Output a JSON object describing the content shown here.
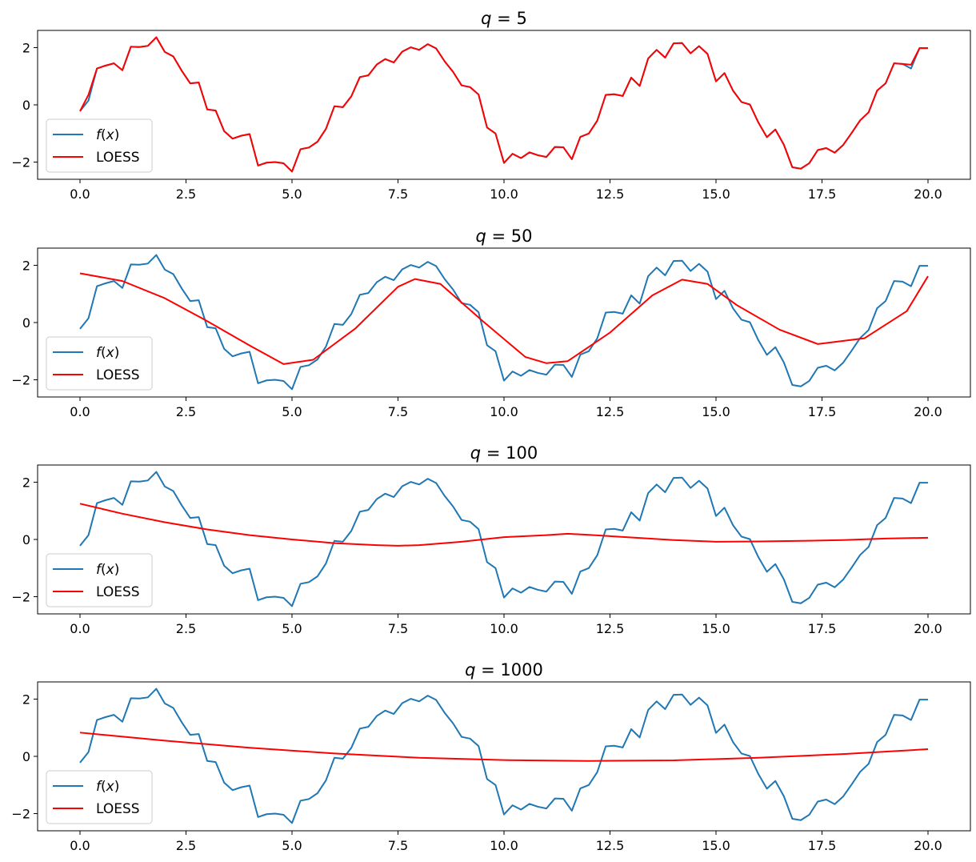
{
  "chart_data": [
    {
      "type": "line",
      "title_var": "q",
      "title_eq": " = ",
      "title_val": "5",
      "xlim": [
        -1.0,
        21.0
      ],
      "ylim": [
        -2.6,
        2.6
      ],
      "xticks": [
        "0.0",
        "2.5",
        "5.0",
        "7.5",
        "10.0",
        "12.5",
        "15.0",
        "17.5",
        "20.0"
      ],
      "yticks": [
        "−2",
        "0",
        "2"
      ],
      "grid": false,
      "legend_position": "lower-left",
      "series": [
        {
          "name_fn": "f",
          "name_paren_open": "(",
          "name_arg": "x",
          "name_paren_close": ")",
          "color": "#1f77b4",
          "ref": "fx"
        },
        {
          "name": "LOESS",
          "color": "#ff0000",
          "kind": "copy_of_fx"
        }
      ]
    },
    {
      "type": "line",
      "title_var": "q",
      "title_eq": " = ",
      "title_val": "50",
      "xlim": [
        -1.0,
        21.0
      ],
      "ylim": [
        -2.6,
        2.6
      ],
      "xticks": [
        "0.0",
        "2.5",
        "5.0",
        "7.5",
        "10.0",
        "12.5",
        "15.0",
        "17.5",
        "20.0"
      ],
      "yticks": [
        "−2",
        "0",
        "2"
      ],
      "grid": false,
      "legend_position": "lower-left",
      "series": [
        {
          "name_fn": "f",
          "name_paren_open": "(",
          "name_arg": "x",
          "name_paren_close": ")",
          "color": "#1f77b4",
          "ref": "fx"
        },
        {
          "name": "LOESS",
          "color": "#ff0000",
          "x": [
            0.0,
            1.0,
            2.0,
            3.0,
            4.0,
            4.8,
            5.5,
            6.5,
            7.5,
            7.9,
            8.5,
            9.5,
            10.5,
            11.0,
            11.5,
            12.5,
            13.5,
            14.2,
            14.8,
            15.5,
            16.5,
            17.4,
            18.5,
            19.5,
            20.0
          ],
          "y": [
            1.72,
            1.45,
            0.85,
            0.05,
            -0.8,
            -1.45,
            -1.3,
            -0.2,
            1.25,
            1.52,
            1.35,
            0.05,
            -1.2,
            -1.42,
            -1.35,
            -0.35,
            0.95,
            1.5,
            1.35,
            0.6,
            -0.25,
            -0.75,
            -0.55,
            0.4,
            1.62
          ]
        }
      ]
    },
    {
      "type": "line",
      "title_var": "q",
      "title_eq": " = ",
      "title_val": "100",
      "xlim": [
        -1.0,
        21.0
      ],
      "ylim": [
        -2.6,
        2.6
      ],
      "xticks": [
        "0.0",
        "2.5",
        "5.0",
        "7.5",
        "10.0",
        "12.5",
        "15.0",
        "17.5",
        "20.0"
      ],
      "yticks": [
        "−2",
        "0",
        "2"
      ],
      "grid": false,
      "legend_position": "lower-left",
      "series": [
        {
          "name_fn": "f",
          "name_paren_open": "(",
          "name_arg": "x",
          "name_paren_close": ")",
          "color": "#1f77b4",
          "ref": "fx"
        },
        {
          "name": "LOESS",
          "color": "#ff0000",
          "x": [
            0.0,
            1.0,
            2.0,
            3.0,
            4.0,
            5.0,
            6.0,
            7.0,
            7.5,
            8.0,
            9.0,
            10.0,
            11.0,
            11.5,
            12.0,
            13.0,
            14.0,
            15.0,
            16.0,
            17.0,
            18.0,
            19.0,
            20.0
          ],
          "y": [
            1.25,
            0.9,
            0.6,
            0.35,
            0.15,
            0.0,
            -0.13,
            -0.2,
            -0.22,
            -0.2,
            -0.08,
            0.08,
            0.15,
            0.2,
            0.16,
            0.07,
            -0.02,
            -0.08,
            -0.07,
            -0.05,
            -0.02,
            0.03,
            0.06
          ]
        }
      ]
    },
    {
      "type": "line",
      "title_var": "q",
      "title_eq": " = ",
      "title_val": "1000",
      "xlim": [
        -1.0,
        21.0
      ],
      "ylim": [
        -2.6,
        2.6
      ],
      "xticks": [
        "0.0",
        "2.5",
        "5.0",
        "7.5",
        "10.0",
        "12.5",
        "15.0",
        "17.5",
        "20.0"
      ],
      "yticks": [
        "−2",
        "0",
        "2"
      ],
      "grid": false,
      "legend_position": "lower-left",
      "series": [
        {
          "name_fn": "f",
          "name_paren_open": "(",
          "name_arg": "x",
          "name_paren_close": ")",
          "color": "#1f77b4",
          "ref": "fx"
        },
        {
          "name": "LOESS",
          "color": "#ff0000",
          "x": [
            0.0,
            2.0,
            4.0,
            6.0,
            8.0,
            10.0,
            12.0,
            14.0,
            16.0,
            18.0,
            20.0
          ],
          "y": [
            0.83,
            0.55,
            0.3,
            0.1,
            -0.05,
            -0.13,
            -0.16,
            -0.14,
            -0.05,
            0.08,
            0.25
          ]
        }
      ]
    }
  ],
  "fx": {
    "x": [
      0.0,
      0.2,
      0.4,
      0.6,
      0.8,
      1.0,
      1.2,
      1.4,
      1.6,
      1.8,
      2.0,
      2.2,
      2.4,
      2.6,
      2.8,
      3.0,
      3.2,
      3.4,
      3.6,
      3.8,
      4.0,
      4.2,
      4.4,
      4.6,
      4.8,
      5.0,
      5.2,
      5.4,
      5.6,
      5.8,
      6.0,
      6.2,
      6.4,
      6.6,
      6.8,
      7.0,
      7.2,
      7.4,
      7.6,
      7.8,
      8.0,
      8.2,
      8.4,
      8.6,
      8.8,
      9.0,
      9.2,
      9.4,
      9.6,
      9.8,
      10.0,
      10.2,
      10.4,
      10.6,
      10.8,
      11.0,
      11.2,
      11.4,
      11.6,
      11.8,
      12.0,
      12.2,
      12.4,
      12.6,
      12.8,
      13.0,
      13.2,
      13.4,
      13.6,
      13.8,
      14.0,
      14.2,
      14.4,
      14.6,
      14.8,
      15.0,
      15.2,
      15.4,
      15.6,
      15.8,
      16.0,
      16.2,
      16.4,
      16.6,
      16.8,
      17.0,
      17.2,
      17.4,
      17.6,
      17.8,
      18.0,
      18.2,
      18.4,
      18.6,
      18.8,
      19.0,
      19.2,
      19.4,
      19.6,
      19.8,
      20.0
    ],
    "y": [
      -0.22,
      0.15,
      1.27,
      1.37,
      1.45,
      1.21,
      2.03,
      2.02,
      2.06,
      2.36,
      1.85,
      1.69,
      1.19,
      0.75,
      0.78,
      -0.16,
      -0.2,
      -0.92,
      -1.18,
      -1.08,
      -1.02,
      -2.12,
      -2.02,
      -2.0,
      -2.04,
      -2.33,
      -1.55,
      -1.49,
      -1.29,
      -0.84,
      -0.05,
      -0.08,
      0.3,
      0.97,
      1.03,
      1.41,
      1.6,
      1.48,
      1.86,
      2.01,
      1.92,
      2.12,
      1.97,
      1.52,
      1.15,
      0.68,
      0.62,
      0.36,
      -0.79,
      -1.0,
      -2.03,
      -1.71,
      -1.86,
      -1.66,
      -1.76,
      -1.82,
      -1.47,
      -1.48,
      -1.9,
      -1.12,
      -1.0,
      -0.55,
      0.35,
      0.37,
      0.31,
      0.95,
      0.66,
      1.62,
      1.92,
      1.65,
      2.15,
      2.16,
      1.8,
      2.05,
      1.78,
      0.82,
      1.11,
      0.5,
      0.1,
      0.01,
      -0.62,
      -1.13,
      -0.86,
      -1.39,
      -2.18,
      -2.23,
      -2.04,
      -1.58,
      -1.51,
      -1.67,
      -1.4,
      -0.98,
      -0.54,
      -0.26,
      0.5,
      0.75,
      1.45,
      1.43,
      1.27,
      1.98,
      1.98
    ]
  }
}
